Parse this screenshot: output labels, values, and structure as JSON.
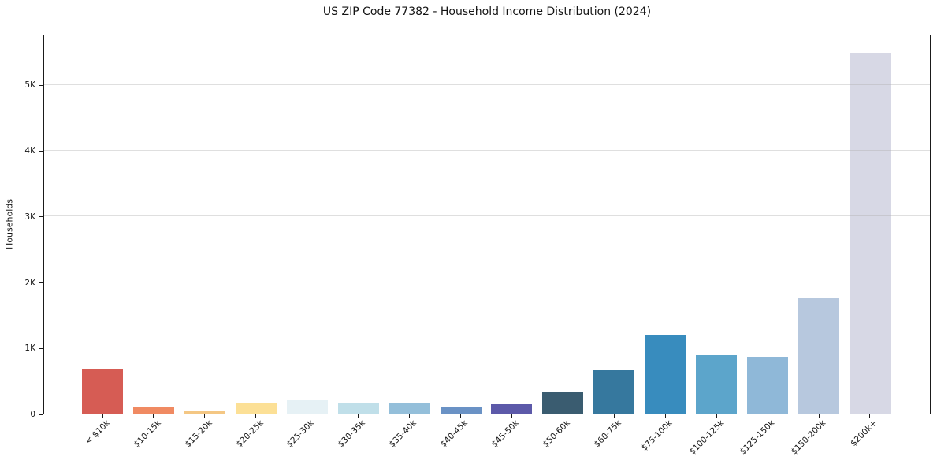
{
  "chart_data": {
    "type": "bar",
    "title": "US ZIP Code 77382 - Household Income Distribution (2024)",
    "xlabel": "",
    "ylabel": "Households",
    "categories": [
      "< $10k",
      "$10-15k",
      "$15-20k",
      "$20-25k",
      "$25-30k",
      "$30-35k",
      "$35-40k",
      "$40-45k",
      "$45-50k",
      "$50-60k",
      "$60-75k",
      "$75-100k",
      "$100-125k",
      "$125-150k",
      "$150-200k",
      "$200k+"
    ],
    "values": [
      680,
      90,
      50,
      155,
      210,
      170,
      150,
      100,
      145,
      330,
      660,
      1200,
      880,
      865,
      1760,
      5475
    ],
    "bar_colors": [
      "#d65c54",
      "#f08a62",
      "#f4c784",
      "#fce096",
      "#e6f1f5",
      "#c0dfe9",
      "#94bfda",
      "#6a92c5",
      "#5c59a9",
      "#3a5c70",
      "#36789e",
      "#388cbe",
      "#5ca5cb",
      "#8fb8d8",
      "#b7c8de",
      "#d7d8e5"
    ],
    "y_ticks": [
      {
        "label": "0",
        "value": 0
      },
      {
        "label": "1K",
        "value": 1000
      },
      {
        "label": "2K",
        "value": 2000
      },
      {
        "label": "3K",
        "value": 3000
      },
      {
        "label": "4K",
        "value": 4000
      },
      {
        "label": "5K",
        "value": 5000
      }
    ],
    "ylim": [
      0,
      5770
    ],
    "grid": "horizontal",
    "grid_above_bars": true,
    "legend": "none",
    "axis_color": "#1a1a1a",
    "grid_color": "#b0b0b0",
    "grid_opacity": 0.4,
    "background": "#ffffff"
  }
}
